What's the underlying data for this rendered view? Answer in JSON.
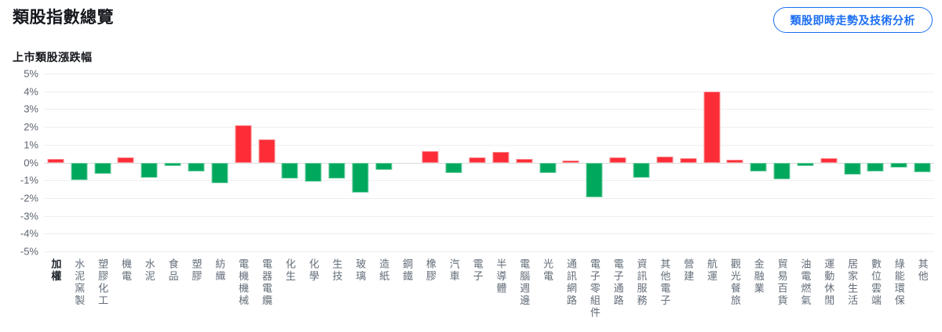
{
  "header": {
    "title": "類股指數總覽",
    "action_button": "類股即時走勢及技術分析"
  },
  "colors": {
    "accent_blue": "#1B6EF3",
    "up_red": "#FC2D36",
    "down_green": "#00A85D"
  },
  "chart_data": {
    "type": "bar",
    "title": "上市類股漲跌幅",
    "unit": "%",
    "ylim": [
      -5,
      5
    ],
    "yticks": [
      5,
      4,
      3,
      2,
      1,
      0,
      -1,
      -2,
      -3,
      -4,
      -5
    ],
    "grid": true,
    "legend": "none",
    "highlight_category": "加權",
    "positive_color": "#FC2D36",
    "negative_color": "#00A85D",
    "categories": [
      "加權",
      "水泥窯製",
      "塑膠化工",
      "機電",
      "水泥",
      "食品",
      "塑膠",
      "紡織",
      "電機機械",
      "電器電纜",
      "化生",
      "化學",
      "生技",
      "玻璃",
      "造紙",
      "鋼鐵",
      "橡膠",
      "汽車",
      "電子",
      "半導體",
      "電腦週邊",
      "光電",
      "通訊網路",
      "電子零組件",
      "電子通路",
      "資訊服務",
      "其他電子",
      "營建",
      "航運",
      "觀光餐旅",
      "金融業",
      "貿易百貨",
      "油電燃氣",
      "運動休閒",
      "居家生活",
      "數位雲端",
      "綠能環保",
      "其他"
    ],
    "values": [
      0.2,
      -1.0,
      -0.65,
      0.3,
      -0.85,
      -0.2,
      -0.5,
      -1.15,
      2.1,
      1.3,
      -0.9,
      -1.1,
      -0.9,
      -1.7,
      -0.4,
      0,
      0.65,
      -0.6,
      0.3,
      0.6,
      0.2,
      -0.6,
      0.1,
      -1.95,
      0.3,
      -0.85,
      0.35,
      0.25,
      4.0,
      0.15,
      -0.5,
      -0.95,
      -0.2,
      0.25,
      -0.7,
      -0.5,
      -0.3,
      -0.55
    ]
  }
}
